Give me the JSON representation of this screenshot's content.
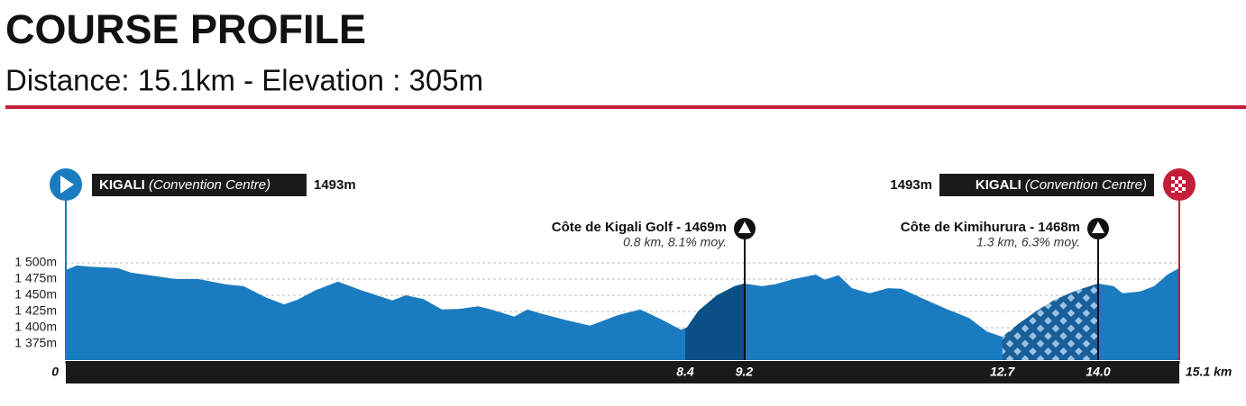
{
  "header": {
    "title": "COURSE PROFILE",
    "subtitle": "Distance: 15.1km - Elevation : 305m"
  },
  "start": {
    "name": "KIGALI",
    "place": "(Convention Centre)",
    "elevation": "1493m"
  },
  "finish": {
    "name": "KIGALI",
    "place": "(Convention Centre)",
    "elevation": "1493m"
  },
  "climbs": [
    {
      "name": "Côte de Kigali Golf - 1469m",
      "detail": "0.8 km, 8.1% moy."
    },
    {
      "name": "Côte de Kimihurura - 1468m",
      "detail": "1.3 km, 6.3% moy."
    }
  ],
  "chart_data": {
    "type": "area",
    "color": "#1a7bc0",
    "x": [
      0,
      0.15,
      0.33,
      0.7,
      0.88,
      1.0,
      1.25,
      1.49,
      1.8,
      2.16,
      2.41,
      2.71,
      2.96,
      3.14,
      3.39,
      3.69,
      4.0,
      4.43,
      4.61,
      4.85,
      5.1,
      5.34,
      5.59,
      5.77,
      6.08,
      6.26,
      6.44,
      6.81,
      7.11,
      7.48,
      7.79,
      8.09,
      8.34,
      8.42,
      8.58,
      8.83,
      9.07,
      9.2,
      9.44,
      9.62,
      9.87,
      10.17,
      10.29,
      10.48,
      10.66,
      10.9,
      11.15,
      11.33,
      11.64,
      11.94,
      12.25,
      12.49,
      12.7,
      12.92,
      13.17,
      13.41,
      13.72,
      14.0,
      14.21,
      14.33,
      14.57,
      14.76,
      14.94,
      15.1
    ],
    "values": [
      1489,
      1496,
      1494,
      1492,
      1485,
      1483,
      1479,
      1475,
      1475,
      1467,
      1464,
      1447,
      1436,
      1443,
      1458,
      1471,
      1458,
      1442,
      1450,
      1444,
      1428,
      1429,
      1433,
      1428,
      1417,
      1428,
      1422,
      1411,
      1403,
      1419,
      1428,
      1412,
      1397,
      1400,
      1426,
      1450,
      1464,
      1468,
      1464,
      1467,
      1475,
      1482,
      1474,
      1481,
      1461,
      1453,
      1461,
      1460,
      1444,
      1429,
      1415,
      1394,
      1386,
      1406,
      1426,
      1443,
      1458,
      1468,
      1464,
      1453,
      1456,
      1464,
      1482,
      1492
    ],
    "xlim": [
      0,
      15.1
    ],
    "ylim": [
      1350,
      1500
    ],
    "xticks": [
      0,
      8.4,
      9.2,
      12.7,
      {
        "value": 14,
        "label": "14.0"
      },
      {
        "value": 15.1,
        "label": "15.1 km"
      }
    ],
    "yticks": [
      {
        "value": 1500,
        "label": "1 500m"
      },
      {
        "value": 1475,
        "label": "1 475m"
      },
      {
        "value": 1450,
        "label": "1 450m"
      },
      {
        "value": 1425,
        "label": "1 425m"
      },
      {
        "value": 1400,
        "label": "1 400m"
      },
      {
        "value": 1375,
        "label": "1 375m"
      }
    ],
    "grid": true
  }
}
